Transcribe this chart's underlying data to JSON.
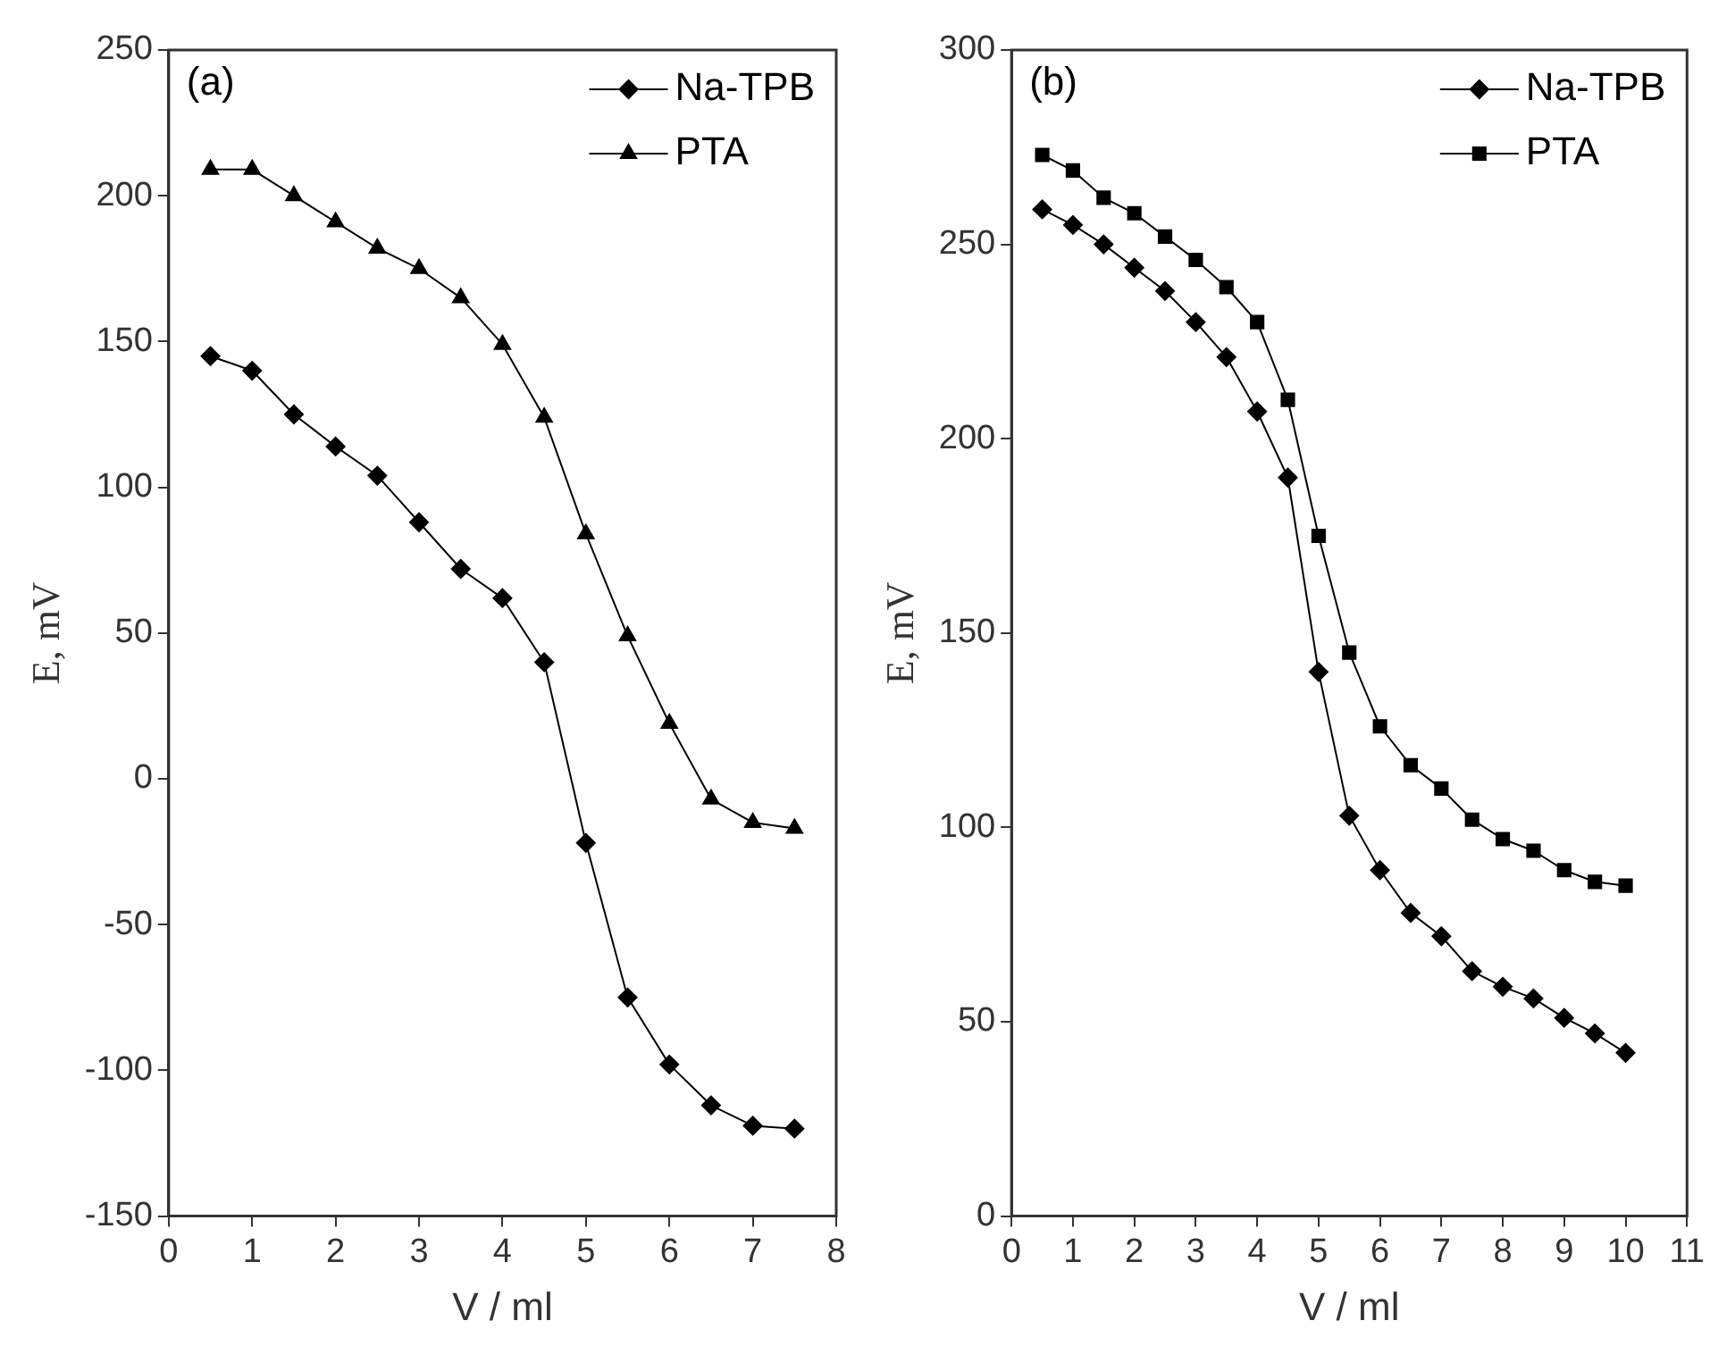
{
  "chart_data": [
    {
      "type": "line",
      "xlabel": "V / ml",
      "ylabel": "E, mV",
      "annotations": [
        "(a)"
      ],
      "legend": "top right",
      "grid": false,
      "x": [
        0.5,
        1,
        1.5,
        2,
        2.5,
        3,
        3.5,
        4,
        4.5,
        5,
        5.5,
        6,
        6.5,
        7,
        7.5
      ],
      "xlim": [
        0,
        8
      ],
      "xticks": [
        0,
        1,
        2,
        3,
        4,
        5,
        6,
        7,
        8
      ],
      "ylim": [
        -150,
        250
      ],
      "yticks": [
        -150,
        -100,
        -50,
        0,
        50,
        100,
        150,
        200,
        250
      ],
      "series": [
        {
          "name": "Na-TPB",
          "color": "#000000",
          "marker": "diamond",
          "values": [
            145,
            140,
            125,
            114,
            104,
            88,
            72,
            62,
            40,
            -22,
            -75,
            -98,
            -112,
            -119,
            -120
          ]
        },
        {
          "name": "PTA",
          "color": "#000000",
          "marker": "triangle",
          "values": [
            209,
            209,
            200,
            191,
            182,
            175,
            165,
            149,
            124,
            84,
            49,
            19,
            -7,
            -15,
            -17
          ]
        }
      ]
    },
    {
      "type": "line",
      "xlabel": "V / ml",
      "ylabel": "E, mV",
      "annotations": [
        "(b)"
      ],
      "legend": "top right",
      "grid": false,
      "x": [
        0.5,
        1,
        1.5,
        2,
        2.5,
        3,
        3.5,
        4,
        4.5,
        5,
        5.5,
        6,
        6.5,
        7,
        7.5,
        8,
        8.5,
        9,
        9.5,
        10
      ],
      "xlim": [
        0,
        11
      ],
      "xticks": [
        0,
        1,
        2,
        3,
        4,
        5,
        6,
        7,
        8,
        9,
        10,
        11
      ],
      "ylim": [
        0,
        300
      ],
      "yticks": [
        0,
        50,
        100,
        150,
        200,
        250,
        300
      ],
      "series": [
        {
          "name": "Na-TPB",
          "color": "#000000",
          "marker": "diamond",
          "values": [
            259,
            255,
            250,
            244,
            238,
            230,
            221,
            207,
            190,
            140,
            103,
            89,
            78,
            72,
            63,
            59,
            56,
            51,
            47,
            42
          ]
        },
        {
          "name": "PTA",
          "color": "#000000",
          "marker": "square",
          "values": [
            273,
            269,
            262,
            258,
            252,
            246,
            239,
            230,
            210,
            175,
            145,
            126,
            116,
            110,
            102,
            97,
            94,
            89,
            86,
            85
          ]
        }
      ]
    }
  ]
}
